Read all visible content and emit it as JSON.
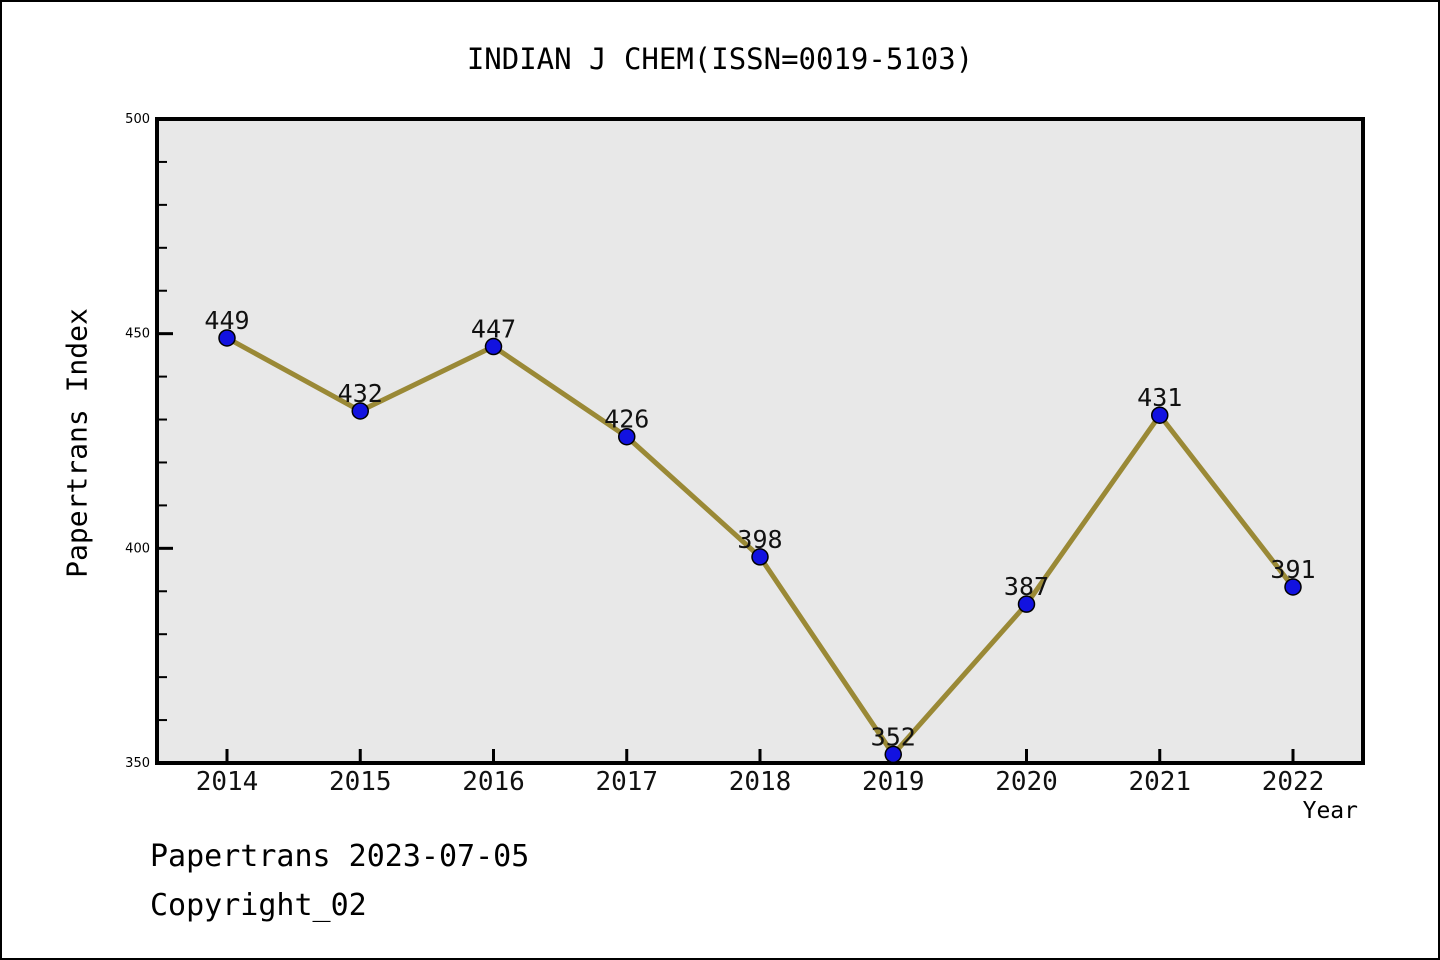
{
  "page": {
    "footer_line1": "Papertrans 2023-07-05",
    "footer_line2": "Copyright_02"
  },
  "chart_data": {
    "type": "line",
    "title": "INDIAN J CHEM(ISSN=0019-5103)",
    "xlabel": "Year",
    "ylabel": "Papertrans Index",
    "x": [
      2014,
      2015,
      2016,
      2017,
      2018,
      2019,
      2020,
      2021,
      2022
    ],
    "values": [
      449,
      432,
      447,
      426,
      398,
      352,
      387,
      431,
      391
    ],
    "point_labels": [
      "449",
      "432",
      "447",
      "426",
      "398",
      "352",
      "387",
      "431",
      "391"
    ],
    "ylim": [
      350,
      500
    ],
    "yticks": [
      350,
      400,
      450,
      500
    ],
    "y_minor_step": 10,
    "grid": false,
    "legend": "none",
    "colors": {
      "line": "#9a8936",
      "marker_fill": "#1212e0",
      "marker_edge": "#000000",
      "plot_bg": "#e8e8e8",
      "axis": "#000000"
    }
  }
}
